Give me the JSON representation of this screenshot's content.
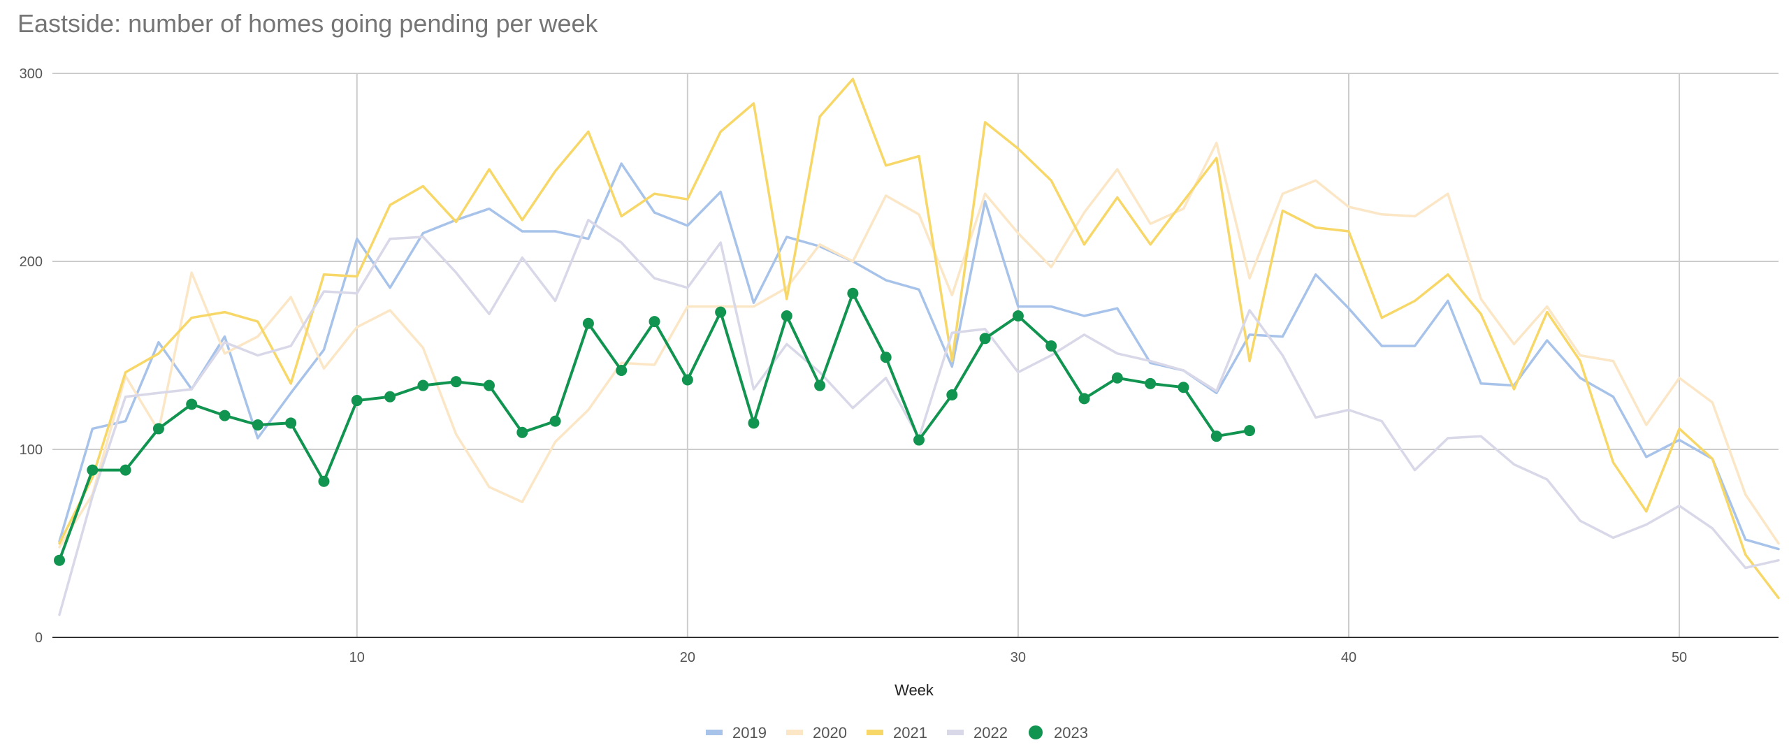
{
  "chart_data": {
    "type": "line",
    "title": "Eastside: number of homes going pending per week",
    "xlabel": "Week",
    "ylabel": "",
    "xlim": [
      1,
      53
    ],
    "ylim": [
      0,
      300
    ],
    "xticks": [
      10,
      20,
      30,
      40,
      50
    ],
    "yticks": [
      0,
      100,
      200,
      300
    ],
    "grid": true,
    "legend_position": "bottom",
    "series": [
      {
        "name": "2019",
        "color": "#a8c3ea",
        "markers": false,
        "x": [
          1,
          2,
          3,
          4,
          5,
          6,
          7,
          8,
          9,
          10,
          11,
          12,
          13,
          14,
          15,
          16,
          17,
          18,
          19,
          20,
          21,
          22,
          23,
          24,
          25,
          26,
          27,
          28,
          29,
          30,
          31,
          32,
          33,
          34,
          35,
          36,
          37,
          38,
          39,
          40,
          41,
          42,
          43,
          44,
          45,
          46,
          47,
          48,
          49,
          50,
          51,
          52,
          53
        ],
        "values": [
          51,
          111,
          115,
          157,
          132,
          160,
          106,
          130,
          153,
          212,
          186,
          215,
          222,
          228,
          216,
          216,
          212,
          252,
          226,
          219,
          237,
          178,
          213,
          208,
          200,
          190,
          185,
          144,
          232,
          176,
          176,
          171,
          175,
          146,
          142,
          130,
          161,
          160,
          193,
          175,
          155,
          155,
          179,
          135,
          134,
          158,
          138,
          128,
          96,
          105,
          95,
          52,
          47
        ]
      },
      {
        "name": "2020",
        "color": "#fbe6c6",
        "markers": false,
        "x": [
          1,
          2,
          3,
          4,
          5,
          6,
          7,
          8,
          9,
          10,
          11,
          12,
          13,
          14,
          15,
          16,
          17,
          18,
          19,
          20,
          21,
          22,
          23,
          24,
          25,
          26,
          27,
          28,
          29,
          30,
          31,
          32,
          33,
          34,
          35,
          36,
          37,
          38,
          39,
          40,
          41,
          42,
          43,
          44,
          45,
          46,
          47,
          48,
          49,
          50,
          51,
          52,
          53
        ],
        "values": [
          48,
          76,
          139,
          110,
          194,
          151,
          160,
          181,
          143,
          165,
          174,
          154,
          108,
          80,
          72,
          104,
          121,
          146,
          145,
          176,
          176,
          176,
          186,
          209,
          200,
          235,
          225,
          182,
          236,
          215,
          197,
          226,
          249,
          220,
          228,
          263,
          191,
          236,
          243,
          229,
          225,
          224,
          236,
          180,
          156,
          176,
          150,
          147,
          113,
          138,
          125,
          76,
          50
        ]
      },
      {
        "name": "2021",
        "color": "#f7d767",
        "markers": false,
        "x": [
          1,
          2,
          3,
          4,
          5,
          6,
          7,
          8,
          9,
          10,
          11,
          12,
          13,
          14,
          15,
          16,
          17,
          18,
          19,
          20,
          21,
          22,
          23,
          24,
          25,
          26,
          27,
          28,
          29,
          30,
          31,
          32,
          33,
          34,
          35,
          36,
          37,
          38,
          39,
          40,
          41,
          42,
          43,
          44,
          45,
          46,
          47,
          48,
          49,
          50,
          51,
          52,
          53
        ],
        "values": [
          50,
          85,
          141,
          151,
          170,
          173,
          168,
          135,
          193,
          192,
          230,
          240,
          221,
          249,
          222,
          248,
          269,
          224,
          236,
          233,
          269,
          284,
          180,
          277,
          297,
          251,
          256,
          147,
          274,
          260,
          243,
          209,
          234,
          209,
          232,
          255,
          147,
          227,
          218,
          216,
          170,
          179,
          193,
          172,
          132,
          173,
          147,
          93,
          67,
          111,
          95,
          44,
          21
        ]
      },
      {
        "name": "2022",
        "color": "#d8d8e9",
        "markers": false,
        "x": [
          1,
          2,
          3,
          4,
          5,
          6,
          7,
          8,
          9,
          10,
          11,
          12,
          13,
          14,
          15,
          16,
          17,
          18,
          19,
          20,
          21,
          22,
          23,
          24,
          25,
          26,
          27,
          28,
          29,
          30,
          31,
          32,
          33,
          34,
          35,
          36,
          37,
          38,
          39,
          40,
          41,
          42,
          43,
          44,
          45,
          46,
          47,
          48,
          49,
          50,
          51,
          52,
          53
        ],
        "values": [
          12,
          75,
          128,
          130,
          132,
          157,
          150,
          155,
          184,
          183,
          212,
          213,
          194,
          172,
          202,
          179,
          222,
          210,
          191,
          186,
          210,
          132,
          156,
          141,
          122,
          138,
          106,
          162,
          164,
          141,
          150,
          161,
          151,
          147,
          142,
          131,
          174,
          150,
          117,
          121,
          115,
          89,
          106,
          107,
          92,
          84,
          62,
          53,
          60,
          70,
          58,
          37,
          41
        ]
      },
      {
        "name": "2023",
        "color": "#119450",
        "markers": true,
        "x": [
          1,
          2,
          3,
          4,
          5,
          6,
          7,
          8,
          9,
          10,
          11,
          12,
          13,
          14,
          15,
          16,
          17,
          18,
          19,
          20,
          21,
          22,
          23,
          24,
          25,
          26,
          27,
          28,
          29,
          30,
          31,
          32,
          33,
          34,
          35,
          36,
          37
        ],
        "values": [
          41,
          89,
          89,
          111,
          124,
          118,
          113,
          114,
          83,
          126,
          128,
          134,
          136,
          134,
          109,
          115,
          167,
          142,
          168,
          137,
          173,
          114,
          171,
          134,
          183,
          149,
          105,
          129,
          159,
          171,
          155,
          127,
          138,
          135,
          133,
          107,
          110
        ]
      }
    ]
  }
}
